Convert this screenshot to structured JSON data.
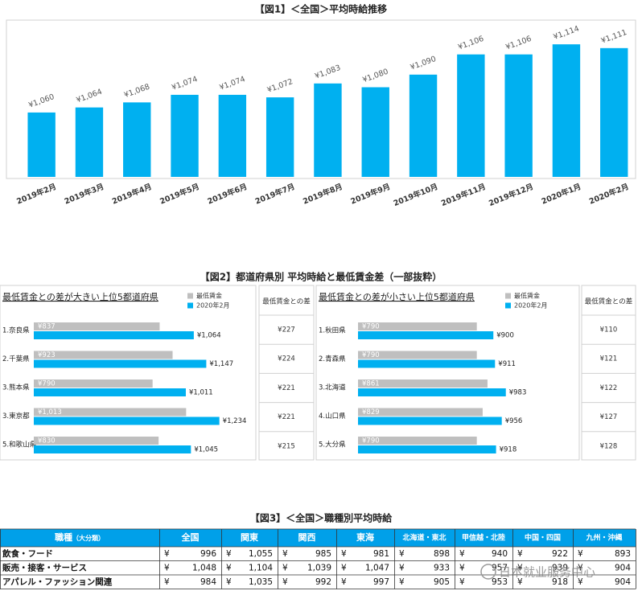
{
  "chart_data": [
    {
      "type": "bar",
      "title": "【図1】＜全国＞平均時給推移",
      "categories": [
        "2019年2月",
        "2019年3月",
        "2019年4月",
        "2019年5月",
        "2019年6月",
        "2019年7月",
        "2019年8月",
        "2019年9月",
        "2019年10月",
        "2019年11月",
        "2019年12月",
        "2020年1月",
        "2020年2月"
      ],
      "values": [
        1060,
        1064,
        1068,
        1074,
        1074,
        1072,
        1083,
        1080,
        1090,
        1106,
        1106,
        1114,
        1111
      ],
      "value_labels": [
        "¥1,060",
        "¥1,064",
        "¥1,068",
        "¥1,074",
        "¥1,074",
        "¥1,072",
        "¥1,083",
        "¥1,080",
        "¥1,090",
        "¥1,106",
        "¥1,106",
        "¥1,114",
        "¥1,111"
      ],
      "color": "#00b0f0",
      "ylim": [
        1009,
        1130
      ]
    },
    {
      "type": "hbar",
      "title": "【図2】都道府県別 平均時給と最低賃金差（一部抜粋）",
      "subtitle": "最低賃金との差が大きい上位5都道府県",
      "categories": [
        "1.奈良県",
        "2.千葉県",
        "3.熊本県",
        "3.東京都",
        "5.和歌山県"
      ],
      "series": [
        {
          "name": "最低賃金",
          "color": "#bfbfbf",
          "values": [
            837,
            923,
            790,
            1013,
            830
          ],
          "value_labels": [
            "¥837",
            "¥923",
            "¥790",
            "¥1,013",
            "¥830"
          ]
        },
        {
          "name": "2020年2月",
          "color": "#00b0f0",
          "values": [
            1064,
            1147,
            1011,
            1234,
            1045
          ],
          "value_labels": [
            "¥1,064",
            "¥1,147",
            "¥1,011",
            "¥1,234",
            "¥1,045"
          ]
        }
      ],
      "xlim": [
        0,
        1300
      ],
      "diff_header": "最低賃金との差",
      "diffs": [
        "¥227",
        "¥224",
        "¥221",
        "¥221",
        "¥215"
      ]
    },
    {
      "type": "hbar",
      "subtitle": "最低賃金との差が小さい上位5都道府県",
      "categories": [
        "1.秋田県",
        "2.青森県",
        "3.北海道",
        "4.山口県",
        "5.大分県"
      ],
      "series": [
        {
          "name": "最低賃金",
          "color": "#bfbfbf",
          "values": [
            790,
            790,
            861,
            829,
            790
          ],
          "value_labels": [
            "¥790",
            "¥790",
            "¥861",
            "¥829",
            "¥790"
          ]
        },
        {
          "name": "2020年2月",
          "color": "#00b0f0",
          "values": [
            900,
            911,
            983,
            956,
            918
          ],
          "value_labels": [
            "¥900",
            "¥911",
            "¥983",
            "¥956",
            "¥918"
          ]
        }
      ],
      "xlim": [
        0,
        1300
      ],
      "diff_header": "最低賃金との差",
      "diffs": [
        "¥110",
        "¥121",
        "¥122",
        "¥127",
        "¥128"
      ]
    }
  ],
  "table": {
    "title": "【図3】＜全国＞職種別平均時給",
    "header_main": "職種",
    "header_sub": "（大分類）",
    "columns": [
      "全国",
      "関東",
      "関西",
      "東海",
      "北海道・東北",
      "甲信越・北陸",
      "中国・四国",
      "九州・沖縄"
    ],
    "currency": "¥",
    "rows": [
      {
        "label": "飲食・フード",
        "values": [
          "996",
          "1,055",
          "985",
          "981",
          "898",
          "940",
          "922",
          "893"
        ]
      },
      {
        "label": "販売・接客・サービス",
        "values": [
          "1,048",
          "1,104",
          "1,039",
          "1,047",
          "933",
          "957",
          "939",
          "904"
        ]
      },
      {
        "label": "アパレル・ファッション関連",
        "values": [
          "984",
          "1,035",
          "992",
          "997",
          "905",
          "953",
          "918",
          "904"
        ]
      }
    ]
  },
  "watermark": "日本就业服务中心"
}
